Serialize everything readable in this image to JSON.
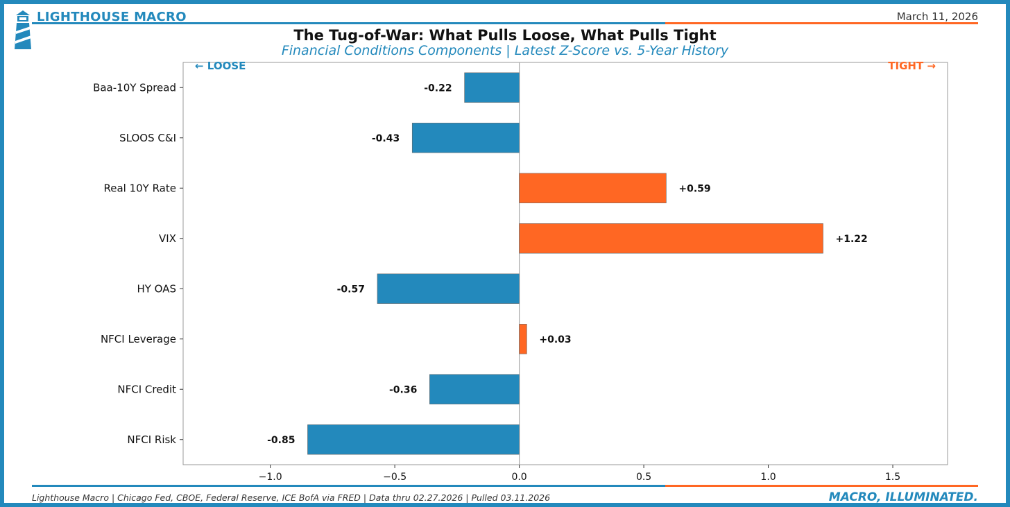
{
  "header": {
    "brand": "LIGHTHOUSE MACRO",
    "date": "March 11, 2026"
  },
  "footer": {
    "source": "Lighthouse Macro | Chicago Fed, CBOE, Federal Reserve, ICE BofA via FRED | Data thru 02.27.2026 | Pulled 03.11.2026",
    "tagline": "MACRO, ILLUMINATED."
  },
  "colors": {
    "brand_blue": "#2389bc",
    "accent_orange": "#ff6723"
  },
  "chart_data": {
    "type": "bar",
    "orientation": "horizontal",
    "title": "The Tug-of-War: What Pulls Loose, What Pulls Tight",
    "subtitle": "Financial Conditions Components | Latest Z-Score vs. 5-Year History",
    "categories": [
      "Baa-10Y Spread",
      "SLOOS C&I",
      "Real 10Y Rate",
      "VIX",
      "HY OAS",
      "NFCI Leverage",
      "NFCI Credit",
      "NFCI Risk"
    ],
    "values": [
      -0.22,
      -0.43,
      0.59,
      1.22,
      -0.57,
      0.03,
      -0.36,
      -0.85
    ],
    "value_labels": [
      "-0.22",
      "-0.43",
      "+0.59",
      "+1.22",
      "-0.57",
      "+0.03",
      "-0.36",
      "-0.85"
    ],
    "xlim": [
      -1.35,
      1.72
    ],
    "xticks": [
      -1.0,
      -0.5,
      0.0,
      0.5,
      1.0,
      1.5
    ],
    "xtick_labels": [
      "−1.0",
      "−0.5",
      "0.0",
      "0.5",
      "1.0",
      "1.5"
    ],
    "xlabel": "",
    "ylabel": "",
    "grid": false,
    "annotations": {
      "left": "← LOOSE",
      "right": "TIGHT →"
    },
    "negative_color": "#2389bc",
    "positive_color": "#ff6723"
  }
}
